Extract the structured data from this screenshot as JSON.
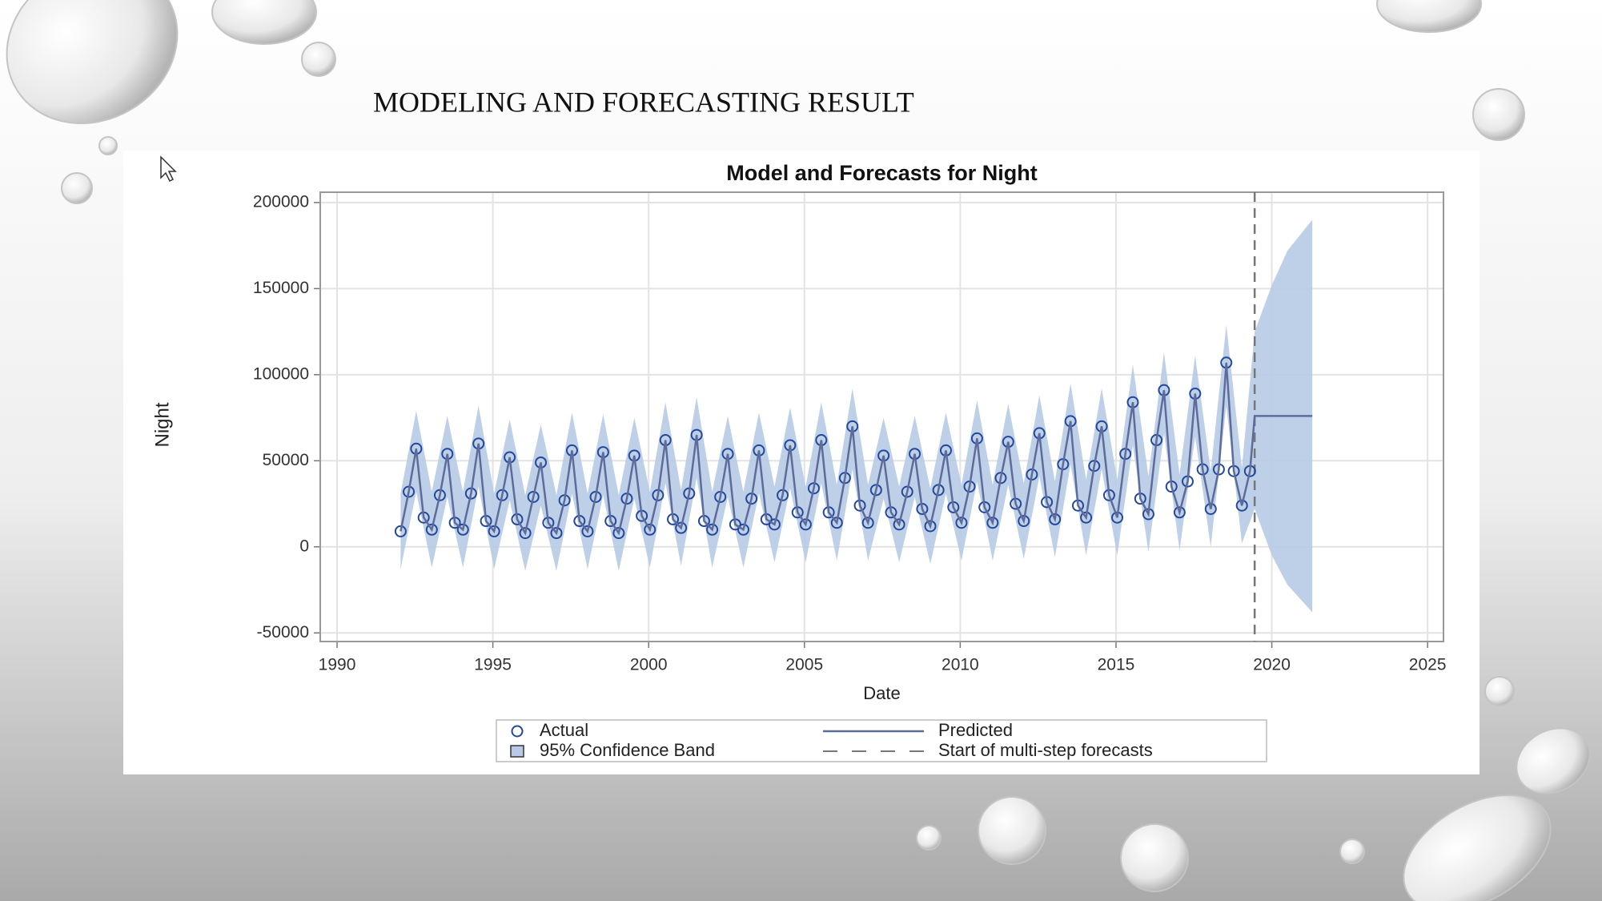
{
  "slide_title": "MODELING AND FORECASTING RESULT",
  "chart_data": {
    "type": "line",
    "title": "Model and Forecasts for Night",
    "x_label": "Date",
    "y_label": "Night",
    "xlim": [
      1989.46,
      2025.51
    ],
    "ylim": [
      -55000,
      206000
    ],
    "xticks": [
      1990,
      1995,
      2000,
      2005,
      2010,
      2015,
      2020,
      2025
    ],
    "yticks": [
      -50000,
      0,
      50000,
      100000,
      150000,
      200000
    ],
    "grid": true,
    "legend": "bottom",
    "x": [
      1992.04,
      1992.3,
      1992.54,
      1992.78,
      1993.04,
      1993.3,
      1993.54,
      1993.78,
      1994.04,
      1994.3,
      1994.54,
      1994.78,
      1995.04,
      1995.3,
      1995.54,
      1995.78,
      1996.04,
      1996.3,
      1996.54,
      1996.78,
      1997.04,
      1997.3,
      1997.54,
      1997.78,
      1998.04,
      1998.3,
      1998.54,
      1998.78,
      1999.04,
      1999.3,
      1999.54,
      1999.78,
      2000.04,
      2000.3,
      2000.54,
      2000.78,
      2001.04,
      2001.3,
      2001.54,
      2001.78,
      2002.04,
      2002.3,
      2002.54,
      2002.78,
      2003.04,
      2003.3,
      2003.54,
      2003.78,
      2004.04,
      2004.3,
      2004.54,
      2004.78,
      2005.04,
      2005.3,
      2005.54,
      2005.78,
      2006.04,
      2006.3,
      2006.54,
      2006.78,
      2007.04,
      2007.3,
      2007.54,
      2007.78,
      2008.04,
      2008.3,
      2008.54,
      2008.78,
      2009.04,
      2009.3,
      2009.54,
      2009.78,
      2010.04,
      2010.3,
      2010.54,
      2010.78,
      2011.04,
      2011.3,
      2011.54,
      2011.78,
      2012.04,
      2012.3,
      2012.54,
      2012.78,
      2013.04,
      2013.3,
      2013.54,
      2013.78,
      2014.04,
      2014.3,
      2014.54,
      2014.78,
      2015.04,
      2015.3,
      2015.54,
      2015.78,
      2016.04,
      2016.3,
      2016.54,
      2016.78,
      2017.04,
      2017.3,
      2017.54,
      2017.78,
      2018.04,
      2018.3,
      2018.54,
      2018.78,
      2019.04,
      2019.3,
      2019.45,
      2021.3
    ],
    "series": [
      {
        "name": "Actual",
        "color": "#23479a",
        "marker": "circle",
        "values": [
          9000,
          32000,
          57000,
          17000,
          10000,
          30000,
          54000,
          14000,
          10000,
          31000,
          60000,
          15000,
          9000,
          30000,
          52000,
          16000,
          8000,
          29000,
          49000,
          14000,
          8000,
          27000,
          56000,
          15000,
          9000,
          29000,
          55000,
          15000,
          8000,
          28000,
          53000,
          18000,
          10000,
          30000,
          62000,
          16000,
          11000,
          31000,
          65000,
          15000,
          10000,
          29000,
          54000,
          13000,
          10000,
          28000,
          56000,
          16000,
          13000,
          30000,
          59000,
          20000,
          13000,
          34000,
          62000,
          20000,
          14000,
          40000,
          70000,
          24000,
          14000,
          33000,
          53000,
          20000,
          13000,
          32000,
          54000,
          22000,
          12000,
          33000,
          56000,
          23000,
          14000,
          35000,
          63000,
          23000,
          14000,
          40000,
          61000,
          25000,
          15000,
          42000,
          66000,
          26000,
          16000,
          48000,
          73000,
          24000,
          17000,
          47000,
          70000,
          30000,
          17000,
          54000,
          84000,
          28000,
          19000,
          62000,
          91000,
          35000,
          20000,
          38000,
          89000,
          45000,
          22000,
          45000,
          107000,
          44000,
          24000,
          44000,
          null,
          null
        ]
      },
      {
        "name": "Predicted",
        "color": "#5d6c9c",
        "marker": "none",
        "values": [
          9000,
          32000,
          57000,
          17000,
          10000,
          30000,
          54000,
          14000,
          10000,
          31000,
          60000,
          15000,
          9000,
          30000,
          52000,
          16000,
          8000,
          29000,
          49000,
          14000,
          8000,
          27000,
          56000,
          15000,
          9000,
          29000,
          55000,
          15000,
          8000,
          28000,
          53000,
          18000,
          10000,
          30000,
          62000,
          16000,
          11000,
          31000,
          65000,
          15000,
          10000,
          29000,
          54000,
          13000,
          10000,
          28000,
          56000,
          16000,
          13000,
          30000,
          59000,
          20000,
          13000,
          34000,
          62000,
          20000,
          14000,
          40000,
          70000,
          24000,
          14000,
          33000,
          53000,
          20000,
          13000,
          32000,
          54000,
          22000,
          12000,
          33000,
          56000,
          23000,
          14000,
          35000,
          63000,
          23000,
          14000,
          40000,
          61000,
          25000,
          15000,
          42000,
          66000,
          26000,
          16000,
          48000,
          73000,
          24000,
          17000,
          47000,
          70000,
          30000,
          17000,
          54000,
          84000,
          28000,
          19000,
          62000,
          91000,
          35000,
          20000,
          38000,
          89000,
          45000,
          22000,
          45000,
          107000,
          44000,
          24000,
          44000,
          76000,
          76000
        ]
      }
    ],
    "band": {
      "name": "95% Confidence Band",
      "color": "#b7cbe6",
      "x": [
        1992.04,
        1992.54,
        1993.04,
        1993.54,
        1994.04,
        1994.54,
        1995.04,
        1995.54,
        1996.04,
        1996.54,
        1997.04,
        1997.54,
        1998.04,
        1998.54,
        1999.04,
        1999.54,
        2000.04,
        2000.54,
        2001.04,
        2001.54,
        2002.04,
        2002.54,
        2003.04,
        2003.54,
        2004.04,
        2004.54,
        2005.04,
        2005.54,
        2006.04,
        2006.54,
        2007.04,
        2007.54,
        2008.04,
        2008.54,
        2009.04,
        2009.54,
        2010.04,
        2010.54,
        2011.04,
        2011.54,
        2012.04,
        2012.54,
        2013.04,
        2013.54,
        2014.04,
        2014.54,
        2015.04,
        2015.54,
        2016.04,
        2016.54,
        2017.04,
        2017.54,
        2018.04,
        2018.54,
        2019.04,
        2019.45,
        2020.0,
        2020.5,
        2021.3
      ],
      "lower": [
        -13000,
        32000,
        -12000,
        29000,
        -12000,
        35000,
        -13000,
        27000,
        -14000,
        24000,
        -14000,
        31000,
        -13000,
        30000,
        -14000,
        28000,
        -12000,
        37000,
        -11000,
        40000,
        -12000,
        29000,
        -12000,
        31000,
        -9000,
        34000,
        -9000,
        37000,
        -8000,
        45000,
        -8000,
        28000,
        -9000,
        29000,
        -10000,
        31000,
        -8000,
        38000,
        -8000,
        36000,
        -7000,
        41000,
        -6000,
        48000,
        -5000,
        45000,
        -5000,
        59000,
        -3000,
        66000,
        -2000,
        64000,
        0,
        82000,
        2000,
        22000,
        -5000,
        -22000,
        -38000
      ],
      "upper": [
        31000,
        79000,
        32000,
        76000,
        32000,
        82000,
        31000,
        74000,
        30000,
        71000,
        30000,
        78000,
        31000,
        77000,
        30000,
        75000,
        32000,
        84000,
        33000,
        87000,
        32000,
        76000,
        32000,
        78000,
        35000,
        81000,
        35000,
        84000,
        36000,
        92000,
        36000,
        75000,
        35000,
        76000,
        34000,
        78000,
        36000,
        85000,
        36000,
        83000,
        37000,
        88000,
        38000,
        95000,
        39000,
        92000,
        39000,
        106000,
        41000,
        113000,
        42000,
        111000,
        44000,
        129000,
        46000,
        125000,
        152000,
        172000,
        190000
      ]
    },
    "forecast_start": {
      "label": "Start of multi-step forecasts",
      "x": 2019.45,
      "color": "#777777"
    }
  }
}
